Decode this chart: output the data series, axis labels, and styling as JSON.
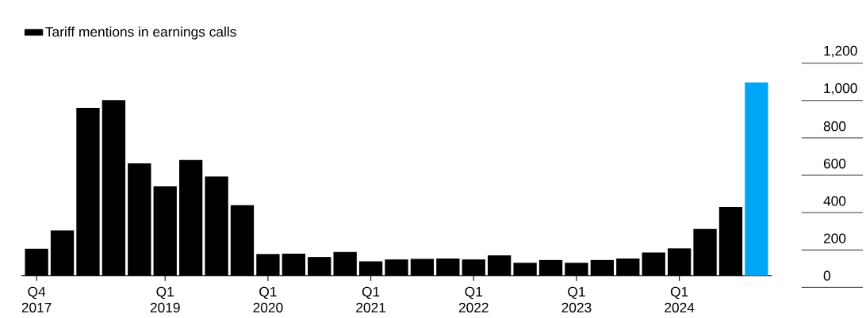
{
  "chart_data": {
    "type": "bar",
    "categories": [
      "Q4 2017",
      null,
      null,
      null,
      null,
      "Q1 2019",
      null,
      null,
      null,
      "Q1 2020",
      null,
      null,
      null,
      "Q1 2021",
      null,
      null,
      null,
      "Q1 2022",
      null,
      null,
      null,
      "Q1 2023",
      null,
      null,
      null,
      "Q1 2024",
      null,
      null,
      null
    ],
    "series": [
      {
        "name": "Tariff mentions in earnings calls",
        "color": "#000000",
        "values": [
          144,
          243,
          899,
          940,
          601,
          478,
          619,
          531,
          378,
          116,
          118,
          100,
          127,
          77,
          87,
          90,
          92,
          87,
          109,
          69,
          84,
          69,
          84,
          92,
          124,
          146,
          250,
          368,
          1034
        ],
        "colors": [
          "#000000",
          "#000000",
          "#000000",
          "#000000",
          "#000000",
          "#000000",
          "#000000",
          "#000000",
          "#000000",
          "#000000",
          "#000000",
          "#000000",
          "#000000",
          "#000000",
          "#000000",
          "#000000",
          "#000000",
          "#000000",
          "#000000",
          "#000000",
          "#000000",
          "#000000",
          "#000000",
          "#000000",
          "#000000",
          "#000000",
          "#000000",
          "#000000",
          "#00a6f5"
        ]
      }
    ],
    "ylim": [
      0,
      1200
    ],
    "yticks": [
      0,
      200,
      400,
      600,
      800,
      {
        "value": 1000,
        "label": "1,000"
      },
      {
        "value": 1200,
        "label": "1,200"
      }
    ],
    "legend": "top left",
    "grid": false
  }
}
